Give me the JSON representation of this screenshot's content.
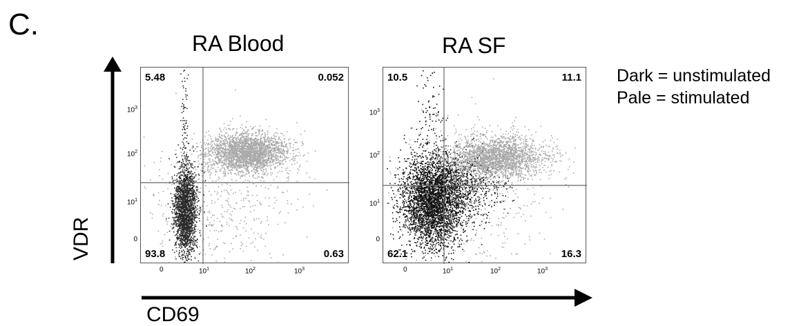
{
  "figure": {
    "panel_letter": "C.",
    "legend": [
      "Dark = unstimulated",
      "Pale = stimulated"
    ],
    "y_axis_title": "VDR",
    "x_axis_title": "CD69"
  },
  "chart_data": [
    {
      "type": "scatter",
      "title": "RA Blood",
      "xlabel": "CD69",
      "ylabel": "VDR",
      "x_ticks": [
        "0",
        "10^1",
        "10^2",
        "10^3"
      ],
      "y_ticks": [
        "0",
        "10^1",
        "10^2",
        "10^3"
      ],
      "quadrants": {
        "top_left": "5.48",
        "top_right": "0.052",
        "bottom_left": "93.8",
        "bottom_right": "0.63"
      },
      "series": [
        {
          "name": "Dark = unstimulated",
          "color": "#2a2a2a"
        },
        {
          "name": "Pale = stimulated",
          "color": "#a9a9a9"
        }
      ]
    },
    {
      "type": "scatter",
      "title": "RA SF",
      "xlabel": "CD69",
      "ylabel": "VDR",
      "x_ticks": [
        "0",
        "10^1",
        "10^2",
        "10^3"
      ],
      "y_ticks": [
        "0",
        "10^1",
        "10^2",
        "10^3"
      ],
      "quadrants": {
        "top_left": "10.5",
        "top_right": "11.1",
        "bottom_left": "62.1",
        "bottom_right": "16.3"
      },
      "series": [
        {
          "name": "Dark = unstimulated",
          "color": "#111111"
        },
        {
          "name": "Pale = stimulated",
          "color": "#a9a9a9"
        }
      ]
    }
  ]
}
